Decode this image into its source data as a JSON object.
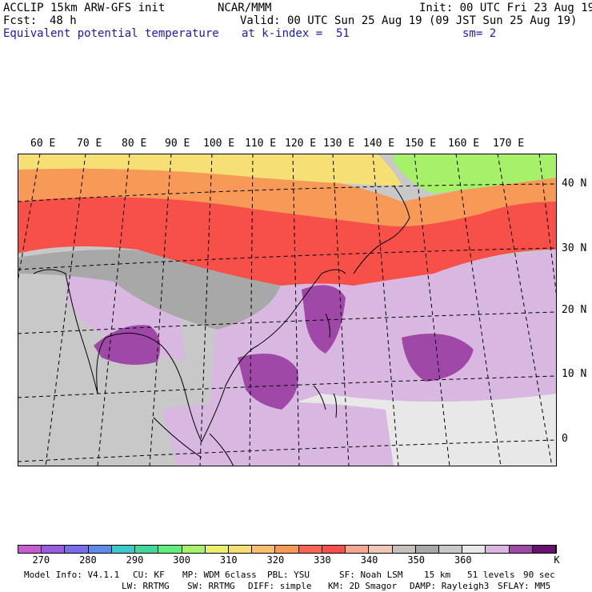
{
  "header": {
    "model": "ACCLIP 15km ARW-GFS init",
    "center": "NCAR/MMM",
    "init": "Init: 00 UTC Fri 23 Aug 19",
    "fcst_label": "Fcst:",
    "fcst_value": "48 h",
    "valid": "Valid: 00 UTC Sun 25 Aug 19 (09 JST Sun 25 Aug 19)",
    "field": "Equivalent potential temperature",
    "level": "at k-index =  51",
    "smooth": "sm= 2"
  },
  "map": {
    "lon_labels": [
      "60 E",
      "70 E",
      "80 E",
      "90 E",
      "100 E",
      "110 E",
      "120 E",
      "130 E",
      "140 E",
      "150 E",
      "160 E",
      "170 E"
    ],
    "lat_labels": [
      "40 N",
      "30 N",
      "20 N",
      "10 N",
      "0"
    ]
  },
  "colorbar": {
    "colors": [
      "#c75cd1",
      "#9b5be0",
      "#7a6de8",
      "#5c8ce8",
      "#3ec8c8",
      "#3fd89a",
      "#60ef7a",
      "#a6f06a",
      "#e8f06c",
      "#f6df74",
      "#f9bf6a",
      "#f79a58",
      "#f76650",
      "#f75048",
      "#f4a890",
      "#eec8b4",
      "#c8c0bc",
      "#a8a8a8",
      "#c8c8c8",
      "#e8e8e8",
      "#d8b8e0",
      "#a048a8",
      "#6a1070"
    ],
    "ticks": [
      "270",
      "280",
      "290",
      "300",
      "310",
      "320",
      "330",
      "340",
      "350",
      "360",
      "K"
    ],
    "tick_values": [
      270,
      280,
      290,
      300,
      310,
      320,
      330,
      340,
      350,
      360
    ]
  },
  "footer": {
    "line1": [
      "Model Info: V4.1.1",
      "CU: KF",
      "MP: WDM 6class",
      "PBL: YSU",
      "SF: Noah LSM",
      "15 km",
      "51 levels",
      "90 sec"
    ],
    "line2": [
      "LW: RRTMG",
      "SW: RRTMG",
      "DIFF: simple",
      "KM: 2D Smagor",
      "DAMP: Rayleigh3",
      "SFLAY: MM5"
    ]
  }
}
